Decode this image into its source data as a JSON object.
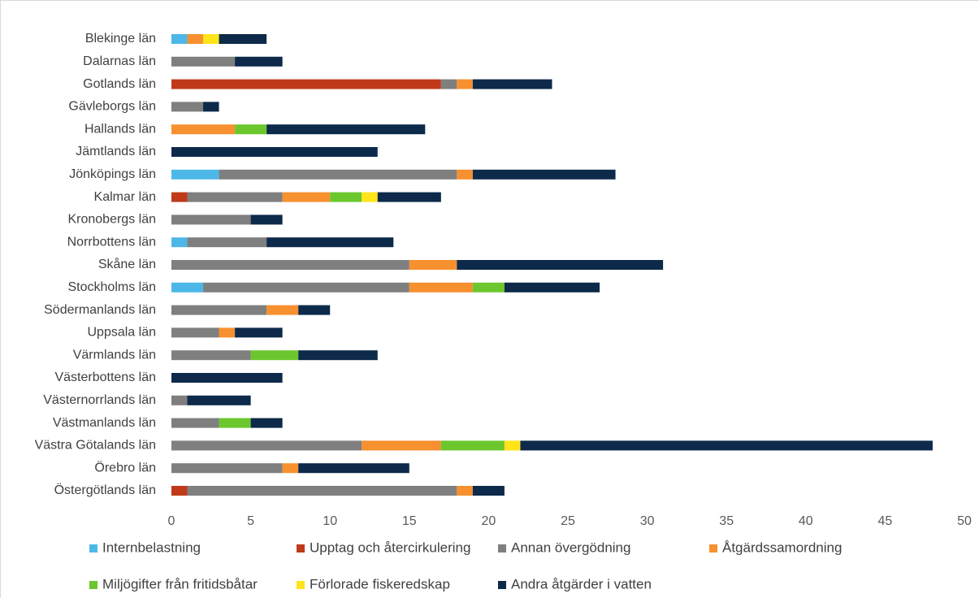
{
  "chart_data": {
    "type": "stacked-barh",
    "categories": [
      "Blekinge län",
      "Dalarnas län",
      "Gotlands län",
      "Gävleborgs län",
      "Hallands län",
      "Jämtlands län",
      "Jönköpings län",
      "Kalmar län",
      "Kronobergs län",
      "Norrbottens län",
      "Skåne län",
      "Stockholms län",
      "Södermanlands län",
      "Uppsala län",
      "Värmlands län",
      "Västerbottens län",
      "Västernorrlands län",
      "Västmanlands län",
      "Västra Götalands län",
      "Örebro län",
      "Östergötlands län"
    ],
    "series": [
      {
        "name": "Internbelastning",
        "color": "#4db8e8",
        "values": [
          1,
          0,
          0,
          0,
          0,
          0,
          3,
          0,
          0,
          1,
          0,
          2,
          0,
          0,
          0,
          0,
          0,
          0,
          0,
          0,
          0
        ]
      },
      {
        "name": "Upptag och återcirkulering",
        "color": "#c0391b",
        "values": [
          0,
          0,
          17,
          0,
          0,
          0,
          0,
          1,
          0,
          0,
          0,
          0,
          0,
          0,
          0,
          0,
          0,
          0,
          0,
          0,
          1
        ]
      },
      {
        "name": "Annan övergödning",
        "color": "#7f7f7f",
        "values": [
          0,
          4,
          1,
          2,
          0,
          0,
          15,
          6,
          5,
          5,
          15,
          13,
          6,
          3,
          5,
          0,
          1,
          3,
          12,
          7,
          17
        ]
      },
      {
        "name": "Åtgärdssamordning",
        "color": "#f7902f",
        "values": [
          1,
          0,
          1,
          0,
          4,
          0,
          1,
          3,
          0,
          0,
          3,
          4,
          2,
          1,
          0,
          0,
          0,
          0,
          5,
          1,
          1
        ]
      },
      {
        "name": "Miljögifter från fritidsbåtar",
        "color": "#6cc72e",
        "values": [
          0,
          0,
          0,
          0,
          2,
          0,
          0,
          2,
          0,
          0,
          0,
          2,
          0,
          0,
          3,
          0,
          0,
          2,
          4,
          0,
          0
        ]
      },
      {
        "name": "Förlorade fiskeredskap",
        "color": "#ffe419",
        "values": [
          1,
          0,
          0,
          0,
          0,
          0,
          0,
          1,
          0,
          0,
          0,
          0,
          0,
          0,
          0,
          0,
          0,
          0,
          1,
          0,
          0
        ]
      },
      {
        "name": "Andra åtgärder i vatten",
        "color": "#0d2a4a",
        "values": [
          3,
          3,
          5,
          1,
          10,
          13,
          9,
          4,
          2,
          8,
          13,
          6,
          2,
          3,
          5,
          7,
          4,
          2,
          26,
          7,
          2
        ]
      }
    ],
    "xlim": [
      0,
      50
    ],
    "xticks": [
      0,
      5,
      10,
      15,
      20,
      25,
      30,
      35,
      40,
      45,
      50
    ]
  }
}
